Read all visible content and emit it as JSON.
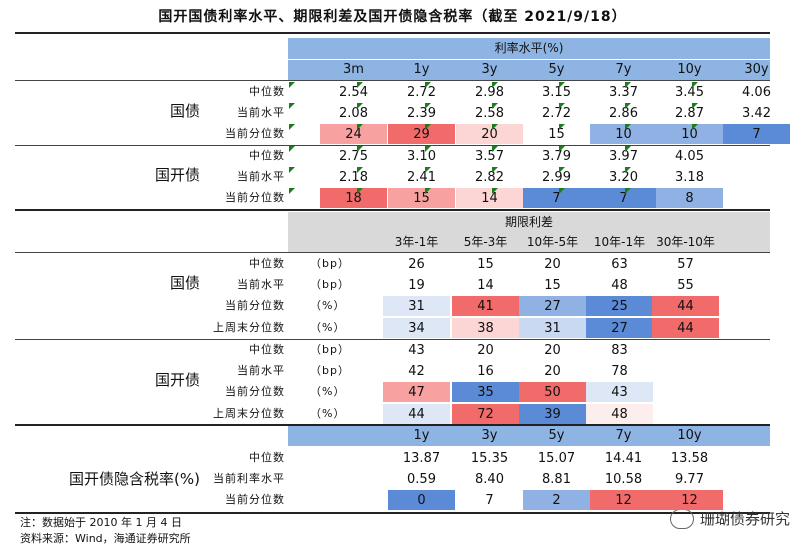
{
  "title": "国开国债利率水平、期限利差及国开债隐含税率（截至 2021/9/18）",
  "colors": {
    "header_blue": "#8DB4E2",
    "header_grey": "#d9d9d9",
    "red_strong": "#F26B6B",
    "red_mid": "#F7A1A1",
    "red_light": "#FCD5D5",
    "blue_strong": "#5B8BD6",
    "blue_mid": "#8FB1E3",
    "blue_light": "#C9D9F1",
    "blue_faint": "#DDE7F6"
  },
  "section1": {
    "header": "利率水平(%)",
    "columns": [
      "3m",
      "1y",
      "3y",
      "5y",
      "7y",
      "10y",
      "30y"
    ],
    "groups": [
      {
        "name": "国债",
        "rows": [
          {
            "label": "中位数",
            "values": [
              "2.54",
              "2.72",
              "2.98",
              "3.15",
              "3.37",
              "3.45",
              "4.06"
            ]
          },
          {
            "label": "当前水平",
            "values": [
              "2.08",
              "2.39",
              "2.58",
              "2.72",
              "2.86",
              "2.87",
              "3.42"
            ]
          },
          {
            "label": "当前分位数",
            "values": [
              "24",
              "29",
              "20",
              "15",
              "10",
              "10",
              "7"
            ]
          }
        ]
      },
      {
        "name": "国开债",
        "rows": [
          {
            "label": "中位数",
            "values": [
              "2.75",
              "3.10",
              "3.57",
              "3.79",
              "3.97",
              "4.05",
              ""
            ]
          },
          {
            "label": "当前水平",
            "values": [
              "2.18",
              "2.41",
              "2.82",
              "2.99",
              "3.20",
              "3.18",
              ""
            ]
          },
          {
            "label": "当前分位数",
            "values": [
              "18",
              "15",
              "14",
              "7",
              "7",
              "8",
              ""
            ]
          }
        ]
      }
    ]
  },
  "section2": {
    "header": "期限利差",
    "columns": [
      "3年-1年",
      "5年-3年",
      "10年-5年",
      "10年-1年",
      "30年-10年"
    ],
    "groups": [
      {
        "name": "国债",
        "rows": [
          {
            "label": "中位数",
            "unit": "（bp）",
            "values": [
              "26",
              "15",
              "20",
              "63",
              "57"
            ]
          },
          {
            "label": "当前水平",
            "unit": "（bp）",
            "values": [
              "19",
              "14",
              "15",
              "48",
              "55"
            ]
          },
          {
            "label": "当前分位数",
            "unit": "（%）",
            "values": [
              "31",
              "41",
              "27",
              "25",
              "44"
            ]
          },
          {
            "label": "上周末分位数",
            "unit": "（%）",
            "values": [
              "34",
              "38",
              "31",
              "27",
              "44"
            ]
          }
        ]
      },
      {
        "name": "国开债",
        "rows": [
          {
            "label": "中位数",
            "unit": "（bp）",
            "values": [
              "43",
              "20",
              "20",
              "83",
              ""
            ]
          },
          {
            "label": "当前水平",
            "unit": "（bp）",
            "values": [
              "42",
              "16",
              "20",
              "78",
              ""
            ]
          },
          {
            "label": "当前分位数",
            "unit": "（%）",
            "values": [
              "47",
              "35",
              "50",
              "43",
              ""
            ]
          },
          {
            "label": "上周末分位数",
            "unit": "（%）",
            "values": [
              "44",
              "72",
              "39",
              "48",
              ""
            ]
          }
        ]
      }
    ]
  },
  "section3": {
    "group": "国开债隐含税率(%)",
    "columns": [
      "1y",
      "3y",
      "5y",
      "7y",
      "10y"
    ],
    "rows": [
      {
        "label": "中位数",
        "values": [
          "13.87",
          "15.35",
          "15.07",
          "14.41",
          "13.58"
        ]
      },
      {
        "label": "当前利率水平",
        "values": [
          "0.59",
          "8.40",
          "8.81",
          "10.58",
          "9.77"
        ]
      },
      {
        "label": "当前分位数",
        "values": [
          "0",
          "7",
          "2",
          "12",
          "12"
        ]
      }
    ]
  },
  "footer": {
    "note": "注：数据始于 2010 年 1 月 4 日",
    "source": "资料来源：Wind，海通证券研究所",
    "watermark": "珊瑚债券研究"
  }
}
